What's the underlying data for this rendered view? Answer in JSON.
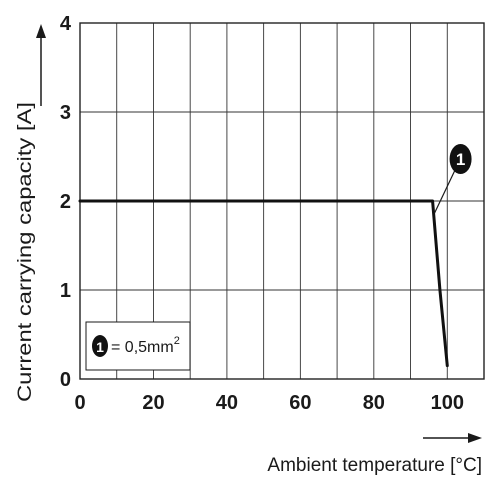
{
  "chart_data": {
    "type": "line",
    "xlabel": "Ambient temperature [°C]",
    "ylabel": "Current carrying capacity [A]",
    "xlim": [
      0,
      110
    ],
    "ylim": [
      0,
      4
    ],
    "x_ticks": [
      0,
      20,
      40,
      60,
      80,
      100
    ],
    "y_ticks": [
      0,
      1,
      2,
      3,
      4
    ],
    "x_grid_step": 10,
    "y_grid_step": 1,
    "grid": true,
    "series": [
      {
        "marker": "1",
        "x": [
          0,
          96,
          98,
          100
        ],
        "y": [
          2,
          2,
          1.0,
          0.15
        ]
      }
    ],
    "legend": {
      "position": "bottom-left",
      "items": [
        {
          "marker": "1",
          "text_prefix": "= 0,5mm",
          "superscript": "2"
        }
      ]
    },
    "annotation": {
      "marker": "1",
      "x": 96,
      "y": 2
    }
  }
}
